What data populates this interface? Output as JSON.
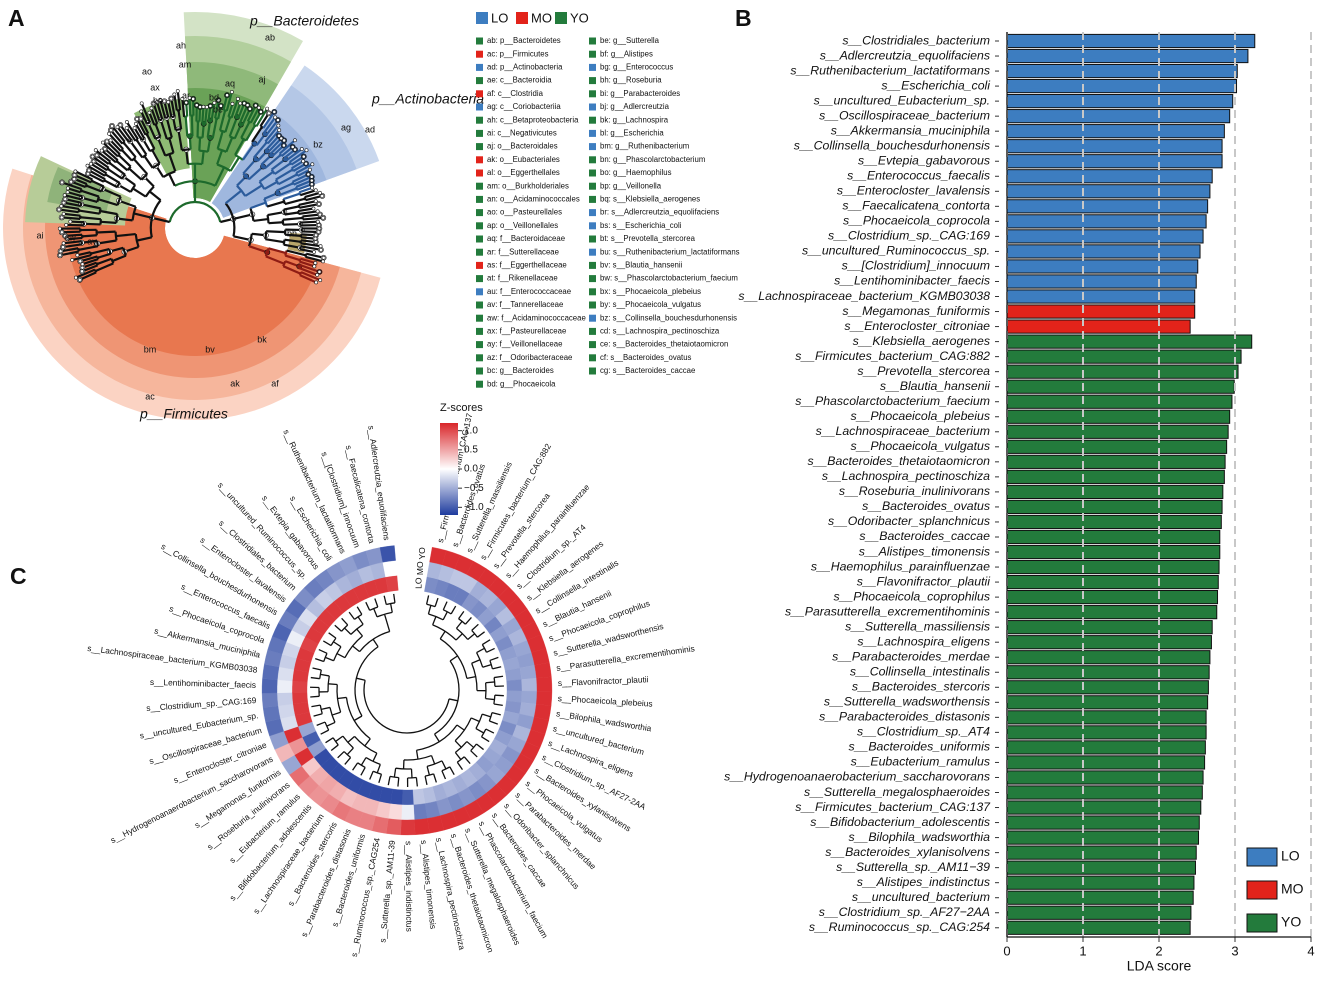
{
  "panel_labels": [
    "A",
    "B",
    "C"
  ],
  "cladogram": {
    "legend_header": [
      {
        "name": "LO",
        "color": "#3d7dc0"
      },
      {
        "name": "MO",
        "color": "#e2231a"
      },
      {
        "name": "YO",
        "color": "#237b3c"
      }
    ],
    "clade_labels": [
      {
        "text": "p__Bacteroidetes",
        "color": "#2e7d32"
      },
      {
        "text": "p__Actinobacteria",
        "color": "#2f6fb5"
      },
      {
        "text": "p__Firmicutes",
        "color": "#e0472a"
      }
    ],
    "node_labels": [
      "ab",
      "ah",
      "am",
      "aq",
      "aj",
      "ar",
      "ao",
      "ax",
      "bo",
      "bd",
      "be",
      "ad",
      "ag",
      "bz",
      "ai",
      "aw",
      "ay",
      "bv",
      "bm",
      "bk",
      "bh",
      "ak",
      "af",
      "ac"
    ],
    "legend_entries": [
      {
        "text": "ab: p__Bacteroidetes",
        "color": "#237b3c"
      },
      {
        "text": "ac: p__Firmicutes",
        "color": "#e2231a"
      },
      {
        "text": "ad: p__Actinobacteria",
        "color": "#3d7dc0"
      },
      {
        "text": "ae: c__Bacteroidia",
        "color": "#237b3c"
      },
      {
        "text": "af: c__Clostridia",
        "color": "#e2231a"
      },
      {
        "text": "ag: c__Coriobacteriia",
        "color": "#3d7dc0"
      },
      {
        "text": "ah: c__Betaproteobacteria",
        "color": "#237b3c"
      },
      {
        "text": "ai: c__Negativicutes",
        "color": "#237b3c"
      },
      {
        "text": "aj: o__Bacteroidales",
        "color": "#237b3c"
      },
      {
        "text": "ak: o__Eubacteriales",
        "color": "#e2231a"
      },
      {
        "text": "al: o__Eggerthellales",
        "color": "#e2231a"
      },
      {
        "text": "am: o__Burkholderiales",
        "color": "#237b3c"
      },
      {
        "text": "an: o__Acidaminococcales",
        "color": "#237b3c"
      },
      {
        "text": "ao: o__Pasteurellales",
        "color": "#237b3c"
      },
      {
        "text": "ap: o__Veillonellales",
        "color": "#237b3c"
      },
      {
        "text": "aq: f__Bacteroidaceae",
        "color": "#237b3c"
      },
      {
        "text": "ar: f__Sutterellaceae",
        "color": "#237b3c"
      },
      {
        "text": "as: f__Eggerthellaceae",
        "color": "#e2231a"
      },
      {
        "text": "at: f__Rikenellaceae",
        "color": "#237b3c"
      },
      {
        "text": "au: f__Enterococcaceae",
        "color": "#3d7dc0"
      },
      {
        "text": "av: f__Tannerellaceae",
        "color": "#237b3c"
      },
      {
        "text": "aw: f__Acidaminococcaceae",
        "color": "#237b3c"
      },
      {
        "text": "ax: f__Pasteurellaceae",
        "color": "#237b3c"
      },
      {
        "text": "ay: f__Veillonellaceae",
        "color": "#237b3c"
      },
      {
        "text": "az: f__Odoribacteraceae",
        "color": "#237b3c"
      },
      {
        "text": "bc: g__Bacteroides",
        "color": "#237b3c"
      },
      {
        "text": "bd: g__Phocaeicola",
        "color": "#237b3c"
      },
      {
        "text": "be: g__Sutterella",
        "color": "#237b3c"
      },
      {
        "text": "bf: g__Alistipes",
        "color": "#237b3c"
      },
      {
        "text": "bg: g__Enterococcus",
        "color": "#3d7dc0"
      },
      {
        "text": "bh: g__Roseburia",
        "color": "#237b3c"
      },
      {
        "text": "bi: g__Parabacteroides",
        "color": "#237b3c"
      },
      {
        "text": "bj: g__Adlercreutzia",
        "color": "#3d7dc0"
      },
      {
        "text": "bk: g__Lachnospira",
        "color": "#237b3c"
      },
      {
        "text": "bl: g__Escherichia",
        "color": "#3d7dc0"
      },
      {
        "text": "bm: g__Ruthenibacterium",
        "color": "#3d7dc0"
      },
      {
        "text": "bn: g__Phascolarctobacterium",
        "color": "#237b3c"
      },
      {
        "text": "bo: g__Haemophilus",
        "color": "#237b3c"
      },
      {
        "text": "bp: g__Veillonella",
        "color": "#237b3c"
      },
      {
        "text": "bq: s__Klebsiella_aerogenes",
        "color": "#237b3c"
      },
      {
        "text": "br: s__Adlercreutzia_equolifaciens",
        "color": "#3d7dc0"
      },
      {
        "text": "bs: s__Escherichia_coli",
        "color": "#3d7dc0"
      },
      {
        "text": "bt: s__Prevotella_stercorea",
        "color": "#237b3c"
      },
      {
        "text": "bu: s__Ruthenibacterium_lactatiformans",
        "color": "#3d7dc0"
      },
      {
        "text": "bv: s__Blautia_hansenii",
        "color": "#237b3c"
      },
      {
        "text": "bw: s__Phascolarctobacterium_faecium",
        "color": "#237b3c"
      },
      {
        "text": "bx: s__Phocaeicola_plebeius",
        "color": "#237b3c"
      },
      {
        "text": "by: s__Phocaeicola_vulgatus",
        "color": "#237b3c"
      },
      {
        "text": "bz: s__Collinsella_bouchesdurhonensis",
        "color": "#3d7dc0"
      },
      {
        "text": "cd: s__Lachnospira_pectinoschiza",
        "color": "#237b3c"
      },
      {
        "text": "ce: s__Bacteroides_thetaiotaomicron",
        "color": "#237b3c"
      },
      {
        "text": "cf: s__Bacteroides_ovatus",
        "color": "#237b3c"
      },
      {
        "text": "cg: s__Bacteroides_caccae",
        "color": "#237b3c"
      }
    ]
  },
  "chart_data": {
    "type": "hbar",
    "xlabel": "LDA score",
    "xlim": [
      0,
      4
    ],
    "xticks": [
      0,
      1,
      2,
      3,
      4
    ],
    "grid": true,
    "legend": "lower right",
    "categories": [
      "s__Clostridiales_bacterium",
      "s__Adlercreutzia_equolifaciens",
      "s__Ruthenibacterium_lactatiformans",
      "s__Escherichia_coli",
      "s__uncultured_Eubacterium_sp.",
      "s__Oscillospiraceae_bacterium",
      "s__Akkermansia_muciniphila",
      "s__Collinsella_bouchesdurhonensis",
      "s__Evtepia_gabavorous",
      "s__Enterococcus_faecalis",
      "s__Enterocloster_lavalensis",
      "s__Faecalicatena_contorta",
      "s__Phocaeicola_coprocola",
      "s__Clostridium_sp._CAG:169",
      "s__uncultured_Ruminococcus_sp.",
      "s__[Clostridium]_innocuum",
      "s__Lentihominibacter_faecis",
      "s__Lachnospiraceae_bacterium_KGMB03038",
      "s__Megamonas_funiformis",
      "s__Enterocloster_citroniae",
      "s__Klebsiella_aerogenes",
      "s__Firmicutes_bacterium_CAG:882",
      "s__Prevotella_stercorea",
      "s__Blautia_hansenii",
      "s__Phascolarctobacterium_faecium",
      "s__Phocaeicola_plebeius",
      "s__Lachnospiraceae_bacterium",
      "s__Phocaeicola_vulgatus",
      "s__Bacteroides_thetaiotaomicron",
      "s__Lachnospira_pectinoschiza",
      "s__Roseburia_inulinivorans",
      "s__Bacteroides_ovatus",
      "s__Odoribacter_splanchnicus",
      "s__Bacteroides_caccae",
      "s__Alistipes_timonensis",
      "s__Haemophilus_parainfluenzae",
      "s__Flavonifractor_plautii",
      "s__Phocaeicola_coprophilus",
      "s__Parasutterella_excrementihominis",
      "s__Sutterella_massiliensis",
      "s__Lachnospira_eligens",
      "s__Parabacteroides_merdae",
      "s__Collinsella_intestinalis",
      "s__Bacteroides_stercoris",
      "s__Sutterella_wadsworthensis",
      "s__Parabacteroides_distasonis",
      "s__Clostridium_sp._AT4",
      "s__Bacteroides_uniformis",
      "s__Eubacterium_ramulus",
      "s__Hydrogenoanaerobacterium_saccharovorans",
      "s__Sutterella_megalosphaeroides",
      "s__Firmicutes_bacterium_CAG:137",
      "s__Bifidobacterium_adolescentis",
      "s__Bilophila_wadsworthia",
      "s__Bacteroides_xylanisolvens",
      "s__Sutterella_sp._AM11−39",
      "s__Alistipes_indistinctus",
      "s__uncultured_bacterium",
      "s__Clostridium_sp._AF27−2AA",
      "s__Ruminococcus_sp._CAG:254"
    ],
    "series": [
      {
        "name": "LO",
        "color": "#3d7dc0",
        "values": [
          3.26,
          3.17,
          3.03,
          3.02,
          2.97,
          2.93,
          2.86,
          2.83,
          2.83,
          2.7,
          2.67,
          2.64,
          2.62,
          2.58,
          2.54,
          2.51,
          2.49,
          2.47,
          null,
          null,
          null,
          null,
          null,
          null,
          null,
          null,
          null,
          null,
          null,
          null,
          null,
          null,
          null,
          null,
          null,
          null,
          null,
          null,
          null,
          null,
          null,
          null,
          null,
          null,
          null,
          null,
          null,
          null,
          null,
          null,
          null,
          null,
          null,
          null,
          null,
          null,
          null,
          null,
          null,
          null
        ]
      },
      {
        "name": "MO",
        "color": "#e2231a",
        "values": [
          null,
          null,
          null,
          null,
          null,
          null,
          null,
          null,
          null,
          null,
          null,
          null,
          null,
          null,
          null,
          null,
          null,
          null,
          2.47,
          2.41,
          null,
          null,
          null,
          null,
          null,
          null,
          null,
          null,
          null,
          null,
          null,
          null,
          null,
          null,
          null,
          null,
          null,
          null,
          null,
          null,
          null,
          null,
          null,
          null,
          null,
          null,
          null,
          null,
          null,
          null,
          null,
          null,
          null,
          null,
          null,
          null,
          null,
          null,
          null,
          null
        ]
      },
      {
        "name": "YO",
        "color": "#237b3c",
        "values": [
          null,
          null,
          null,
          null,
          null,
          null,
          null,
          null,
          null,
          null,
          null,
          null,
          null,
          null,
          null,
          null,
          null,
          null,
          null,
          null,
          3.22,
          3.08,
          3.04,
          2.99,
          2.96,
          2.93,
          2.91,
          2.89,
          2.87,
          2.86,
          2.84,
          2.83,
          2.82,
          2.8,
          2.8,
          2.79,
          2.78,
          2.77,
          2.76,
          2.7,
          2.69,
          2.67,
          2.66,
          2.65,
          2.64,
          2.62,
          2.62,
          2.61,
          2.6,
          2.58,
          2.57,
          2.55,
          2.53,
          2.52,
          2.49,
          2.48,
          2.46,
          2.45,
          2.42,
          2.41
        ]
      }
    ]
  },
  "heatmap": {
    "title": "Z-scores",
    "columns": [
      "LO",
      "MO",
      "YO"
    ],
    "zlim": [
      -1.2,
      1.2
    ],
    "zticks": [
      {
        "value": 1,
        "label": "1.0"
      },
      {
        "value": 0.5,
        "label": "0.5"
      },
      {
        "value": 0,
        "label": "0.0"
      },
      {
        "value": -0.5,
        "label": "−0.5"
      },
      {
        "value": -1,
        "label": "−1.0"
      }
    ],
    "colors": [
      "#1f3c9e",
      "#ffffff",
      "#d9262a"
    ],
    "rows": [
      "s__Firmicutes_bacterium_CAG:137",
      "s__Bacteroides_ovatus",
      "s__Sutterella_massiliensis",
      "s__Firmicutes_bacterium_CAG:882",
      "s__Prevotella_stercorea",
      "s__Haemophilus_parainfluenzae",
      "s__Clostridium_sp._AT4",
      "s__Klebsiella_aerogenes",
      "s__Collinsella_intestinalis",
      "s__Blautia_hansenii",
      "s__Phocaeicola_coprophilus",
      "s__Sutterella_wadsworthensis",
      "s__Parasutterella_excrementihominis",
      "s__Flavonifractor_plautii",
      "s__Phocaeicola_plebeius",
      "s__Bilophila_wadsworthia",
      "s__uncultured_bacterium",
      "s__Lachnospira_eligens",
      "s__Clostridium_sp._AF27-2AA",
      "s__Bacteroides_xylanisolvens",
      "s__Phocaeicola_vulgatus",
      "s__Parabacteroides_merdae",
      "s__Odoribacter_splanchnicus",
      "s__Bacteroides_caccae",
      "s__Phascolarctobacterium_faecium",
      "s__Sutterella_megalosphaeroides",
      "s__Bacteroides_thetaiotaomicron",
      "s__Lachnospira_pectinoschiza",
      "s__Alistipes_timonensis",
      "s__Alistipes_indistinctus",
      "s__Sutterella_sp._AM11-39",
      "s__Ruminococcus_sp._CAG254",
      "s__Bacteroides_uniformis",
      "s__Parabacteroides_distasonis",
      "s__Bacteroides_stercoris",
      "s__Lachnospiraceae_bacterium",
      "s__Bifidobacterium_adolescentis",
      "s__Eubacterium_ramulus",
      "s__Roseburia_inulinivorans",
      "s__Megamonas_funiformis",
      "s__Hydrogenoanaerobacterium_saccharovorans",
      "s__Enterocloster_citroniae",
      "s__Oscillospiraceae_bacterium",
      "s__uncultured_Eubacterium_sp.",
      "s__Clostridium_sp._CAG:169",
      "s__Lentihominibacter_faecis",
      "s__Lachnospiraceae_bacterium_KGMB03038",
      "s__Akkermansia_muciniphila",
      "s__Phocaeicola_coprocola",
      "s__Enterococcus_faecalis",
      "s__Collinsella_bouchesdurhonensis",
      "s__Enterocloster_lavalensis",
      "s__Clostridiales_bacterium",
      "s__uncultured_Ruminococcus_sp.",
      "s__Evtepia_gabavorous",
      "s__Escherichia_coli",
      "s__Ruthenibacterium_lactatiformans",
      "s__[Clostridium]_innocuum",
      "s__Faecalicatena_contorta",
      "s__Adlercreutzia_equolifaciens"
    ],
    "values": [
      [
        -0.7,
        -0.45,
        1.15
      ],
      [
        -0.75,
        -0.4,
        1.15
      ],
      [
        -0.8,
        -0.35,
        1.15
      ],
      [
        -0.8,
        -0.35,
        1.15
      ],
      [
        -0.65,
        -0.5,
        1.15
      ],
      [
        -0.7,
        -0.45,
        1.15
      ],
      [
        -0.6,
        -0.55,
        1.15
      ],
      [
        -0.75,
        -0.4,
        1.15
      ],
      [
        -0.6,
        -0.55,
        1.15
      ],
      [
        -0.7,
        -0.45,
        1.15
      ],
      [
        -0.6,
        -0.55,
        1.15
      ],
      [
        -0.55,
        -0.6,
        1.15
      ],
      [
        -0.6,
        -0.55,
        1.15
      ],
      [
        -0.7,
        -0.45,
        1.15
      ],
      [
        -0.6,
        -0.55,
        1.15
      ],
      [
        -0.65,
        -0.5,
        1.15
      ],
      [
        -0.55,
        -0.6,
        1.15
      ],
      [
        -0.7,
        -0.45,
        1.15
      ],
      [
        -0.6,
        -0.55,
        1.15
      ],
      [
        -0.5,
        -0.65,
        1.15
      ],
      [
        -0.55,
        -0.6,
        1.15
      ],
      [
        -0.6,
        -0.55,
        1.15
      ],
      [
        -0.5,
        -0.65,
        1.15
      ],
      [
        -0.45,
        -0.7,
        1.15
      ],
      [
        -0.5,
        -0.65,
        1.15
      ],
      [
        -0.45,
        -0.7,
        1.15
      ],
      [
        -0.5,
        -0.65,
        1.15
      ],
      [
        -0.4,
        -0.75,
        1.15
      ],
      [
        -0.35,
        -0.8,
        1.15
      ],
      [
        -1.0,
        -0.1,
        1.1
      ],
      [
        -1.1,
        0.2,
        0.9
      ],
      [
        -1.1,
        0.3,
        0.8
      ],
      [
        -1.1,
        0.4,
        0.7
      ],
      [
        -1.1,
        0.4,
        0.7
      ],
      [
        -1.1,
        0.35,
        0.75
      ],
      [
        -1.1,
        0.45,
        0.65
      ],
      [
        -1.1,
        0.5,
        0.6
      ],
      [
        -1.1,
        0.45,
        0.65
      ],
      [
        -1.1,
        0.3,
        0.8
      ],
      [
        -0.6,
        1.15,
        -0.55
      ],
      [
        -1.0,
        0.6,
        0.4
      ],
      [
        -0.55,
        1.15,
        -0.6
      ],
      [
        1.1,
        -0.2,
        -0.9
      ],
      [
        1.1,
        -0.25,
        -0.85
      ],
      [
        1.1,
        -0.3,
        -0.8
      ],
      [
        1.05,
        -0.1,
        -0.95
      ],
      [
        1.1,
        -0.2,
        -0.9
      ],
      [
        1.1,
        -0.3,
        -0.8
      ],
      [
        1.1,
        -0.25,
        -0.85
      ],
      [
        1.05,
        -0.1,
        -0.95
      ],
      [
        1.1,
        -0.3,
        -0.8
      ],
      [
        1.1,
        -0.2,
        -0.9
      ],
      [
        1.1,
        -0.4,
        -0.7
      ],
      [
        1.1,
        -0.3,
        -0.8
      ],
      [
        1.1,
        -0.35,
        -0.75
      ],
      [
        1.1,
        -0.45,
        -0.65
      ],
      [
        1.1,
        -0.5,
        -0.6
      ],
      [
        1.1,
        -0.4,
        -0.7
      ],
      [
        1.1,
        -0.45,
        -0.65
      ],
      [
        1.05,
        0.0,
        -1.05
      ]
    ]
  }
}
